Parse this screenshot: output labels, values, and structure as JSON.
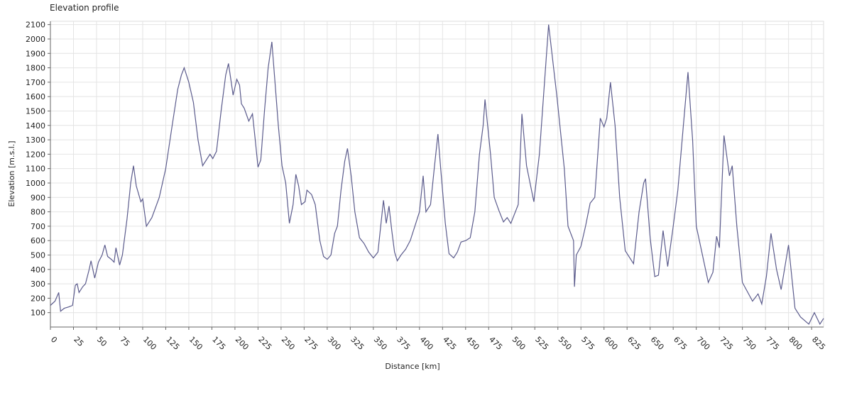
{
  "chart_data": {
    "type": "line",
    "title": "Elevation profile",
    "x_label": "Distance [km]",
    "y_label": "Elevation [m.s.l.]",
    "series": [
      {
        "name": "Elevation",
        "color": "#5b5b8c",
        "x": [
          0,
          5,
          9,
          11,
          15,
          20,
          24,
          27,
          29,
          31,
          35,
          38,
          42,
          44,
          48,
          52,
          56,
          59,
          62,
          66,
          69,
          71,
          75,
          78,
          83,
          87,
          90,
          93,
          98,
          100,
          104,
          110,
          118,
          125,
          132,
          138,
          142,
          145,
          150,
          155,
          160,
          165,
          170,
          173,
          176,
          180,
          185,
          190,
          193,
          196,
          198,
          202,
          205,
          207,
          210,
          215,
          219,
          222,
          225,
          228,
          232,
          236,
          240,
          244,
          247,
          251,
          255,
          259,
          263,
          266,
          269,
          272,
          276,
          278,
          283,
          287,
          292,
          296,
          300,
          304,
          308,
          311,
          315,
          319,
          322,
          326,
          330,
          335,
          340,
          345,
          350,
          355,
          358,
          361,
          364,
          367,
          370,
          373,
          376,
          380,
          385,
          390,
          395,
          400,
          404,
          407,
          412,
          416,
          420,
          423,
          428,
          432,
          437,
          441,
          445,
          450,
          455,
          460,
          465,
          469,
          471,
          477,
          481,
          486,
          491,
          495,
          499,
          507,
          511,
          516,
          524,
          530,
          540,
          549,
          557,
          561,
          567,
          568,
          570,
          575,
          580,
          585,
          590,
          596,
          600,
          603,
          607,
          612,
          617,
          623,
          632,
          638,
          643,
          645,
          650,
          655,
          659,
          664,
          669,
          675,
          680,
          686,
          691,
          696,
          700,
          704,
          713,
          718,
          722,
          725,
          730,
          736,
          739,
          744,
          750,
          761,
          767,
          771,
          776,
          781,
          787,
          792,
          800,
          807,
          813,
          822,
          828,
          834,
          838
        ],
        "values": [
          150,
          180,
          240,
          110,
          130,
          140,
          150,
          290,
          300,
          240,
          280,
          300,
          400,
          460,
          340,
          450,
          500,
          570,
          490,
          470,
          450,
          550,
          430,
          500,
          750,
          1000,
          1120,
          980,
          870,
          890,
          700,
          760,
          900,
          1100,
          1400,
          1650,
          1750,
          1800,
          1700,
          1560,
          1300,
          1120,
          1170,
          1200,
          1170,
          1220,
          1500,
          1750,
          1830,
          1700,
          1610,
          1720,
          1680,
          1550,
          1520,
          1430,
          1480,
          1300,
          1110,
          1160,
          1500,
          1800,
          1980,
          1650,
          1400,
          1120,
          1000,
          720,
          850,
          1060,
          980,
          850,
          870,
          950,
          920,
          850,
          600,
          490,
          470,
          500,
          650,
          700,
          950,
          1150,
          1240,
          1050,
          800,
          620,
          580,
          520,
          480,
          520,
          700,
          880,
          720,
          840,
          670,
          520,
          460,
          500,
          540,
          600,
          700,
          800,
          1050,
          800,
          850,
          1100,
          1340,
          1100,
          720,
          510,
          480,
          520,
          590,
          600,
          620,
          800,
          1200,
          1400,
          1580,
          1200,
          900,
          810,
          730,
          760,
          720,
          850,
          1480,
          1120,
          870,
          1200,
          2100,
          1600,
          1100,
          700,
          600,
          280,
          500,
          560,
          700,
          860,
          900,
          1450,
          1390,
          1450,
          1700,
          1400,
          900,
          530,
          440,
          800,
          1000,
          1030,
          620,
          350,
          360,
          670,
          420,
          700,
          950,
          1400,
          1770,
          1300,
          700,
          580,
          310,
          380,
          630,
          550,
          1330,
          1050,
          1120,
          700,
          310,
          180,
          230,
          160,
          350,
          650,
          400,
          260,
          570,
          130,
          70,
          20,
          100,
          20,
          60
        ]
      }
    ],
    "xlim": [
      0,
      838
    ],
    "ylim": [
      0,
      2123
    ],
    "xticks": [
      0,
      25,
      50,
      75,
      100,
      125,
      150,
      175,
      200,
      225,
      250,
      275,
      300,
      325,
      350,
      375,
      400,
      425,
      450,
      475,
      500,
      525,
      550,
      575,
      600,
      625,
      650,
      675,
      700,
      725,
      750,
      775,
      800,
      825
    ],
    "yticks": [
      100,
      200,
      300,
      400,
      500,
      600,
      700,
      800,
      900,
      1000,
      1100,
      1200,
      1300,
      1400,
      1500,
      1600,
      1700,
      1800,
      1900,
      2000,
      2100
    ],
    "grid": true
  }
}
